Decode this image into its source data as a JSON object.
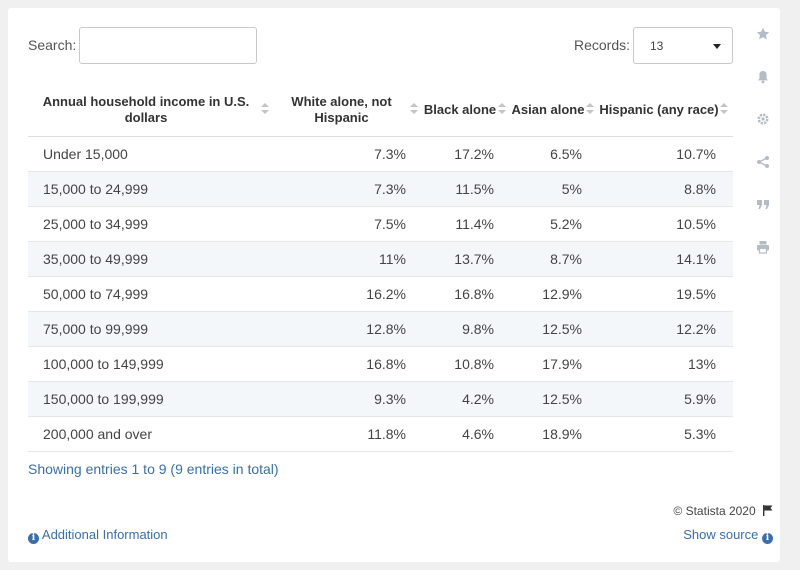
{
  "search": {
    "label": "Search:",
    "value": ""
  },
  "records": {
    "label": "Records:",
    "value": "13"
  },
  "chart_data": {
    "type": "table",
    "columns": [
      "Annual household income in U.S. dollars",
      "White alone, not Hispanic",
      "Black alone",
      "Asian alone",
      "Hispanic (any race)"
    ],
    "rows": [
      [
        "Under 15,000",
        "7.3%",
        "17.2%",
        "6.5%",
        "10.7%"
      ],
      [
        "15,000 to 24,999",
        "7.3%",
        "11.5%",
        "5%",
        "8.8%"
      ],
      [
        "25,000 to 34,999",
        "7.5%",
        "11.4%",
        "5.2%",
        "10.5%"
      ],
      [
        "35,000 to 49,999",
        "11%",
        "13.7%",
        "8.7%",
        "14.1%"
      ],
      [
        "50,000 to 74,999",
        "16.2%",
        "16.8%",
        "12.9%",
        "19.5%"
      ],
      [
        "75,000 to 99,999",
        "12.8%",
        "9.8%",
        "12.5%",
        "12.2%"
      ],
      [
        "100,000 to 149,999",
        "16.8%",
        "10.8%",
        "17.9%",
        "13%"
      ],
      [
        "150,000 to 199,999",
        "9.3%",
        "4.2%",
        "12.5%",
        "5.9%"
      ],
      [
        "200,000 and over",
        "11.8%",
        "4.6%",
        "18.9%",
        "5.3%"
      ]
    ]
  },
  "footer": {
    "showing": "Showing entries 1 to 9 (9 entries in total)",
    "credit": "© Statista 2020",
    "additional_info": "Additional Information",
    "show_source": "Show source"
  },
  "side_icons": [
    "star-icon",
    "bell-icon",
    "gear-icon",
    "share-icon",
    "quote-icon",
    "print-icon"
  ]
}
